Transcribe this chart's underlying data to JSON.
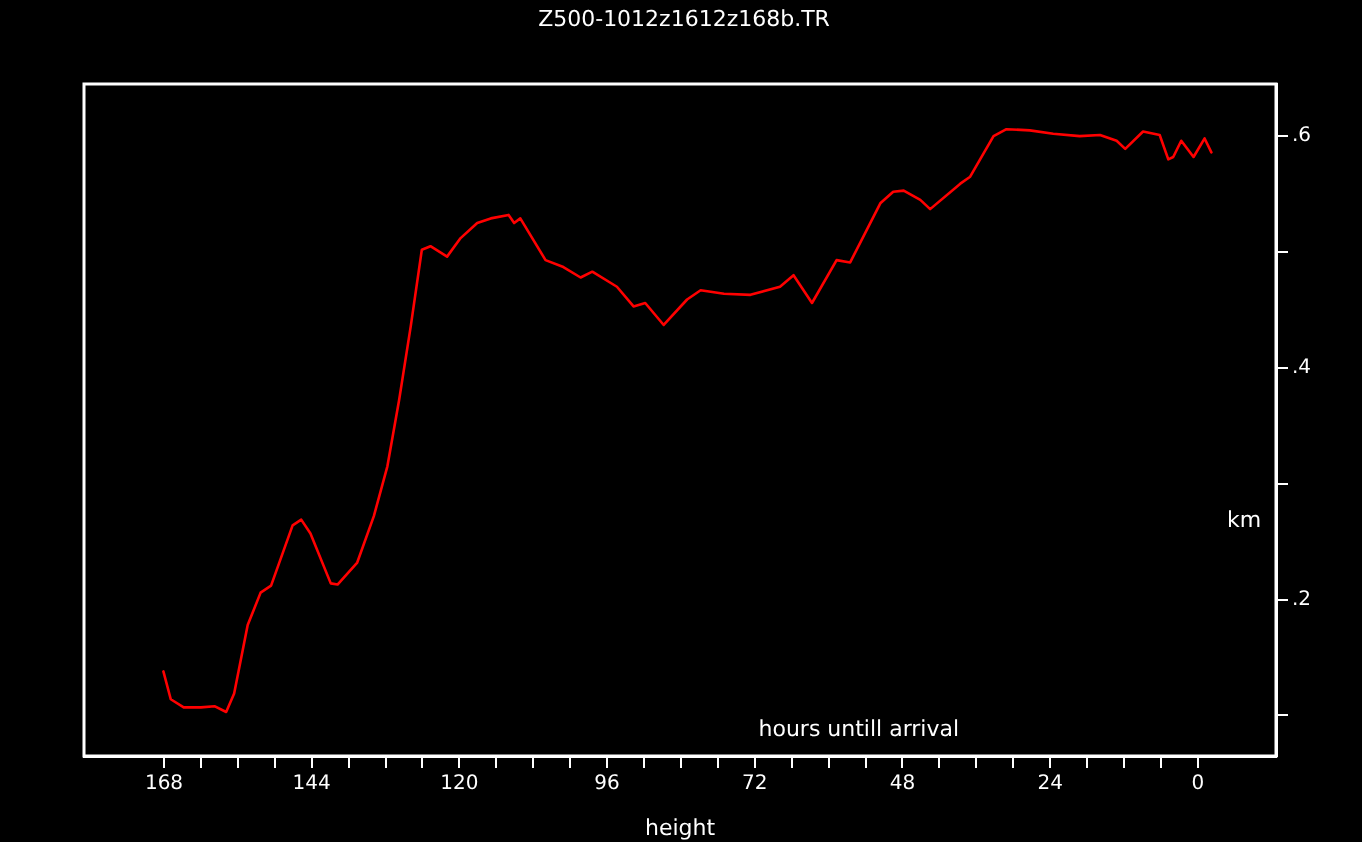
{
  "chart_data": {
    "type": "line",
    "title": "Z500-1012z1612z168b.TR",
    "xlabel": "height",
    "ylabel": "km",
    "annotations": [
      "hours untill arrival"
    ],
    "x": [
      168.1,
      166.9,
      164.8,
      162.0,
      159.8,
      157.9,
      156.6,
      154.4,
      152.3,
      150.6,
      147.1,
      145.7,
      144.2,
      140.9,
      139.8,
      136.6,
      133.9,
      131.7,
      129.8,
      127.9,
      126.1,
      124.7,
      122.0,
      119.8,
      117.1,
      114.9,
      112.0,
      111.1,
      110.1,
      106.0,
      103.1,
      100.3,
      98.4,
      94.4,
      91.7,
      89.8,
      86.8,
      83.0,
      80.8,
      77.0,
      72.7,
      67.9,
      65.7,
      62.7,
      58.7,
      56.5,
      51.6,
      49.5,
      47.8,
      45.1,
      43.5,
      38.6,
      37.0,
      33.2,
      31.1,
      27.3,
      23.5,
      19.2,
      15.9,
      13.2,
      11.8,
      8.9,
      6.2,
      4.8,
      4.0,
      2.7,
      0.7,
      -1.1,
      -2.2
    ],
    "series": [
      {
        "color": "#ff0000",
        "values": [
          0.138,
          0.114,
          0.107,
          0.107,
          0.108,
          0.103,
          0.119,
          0.178,
          0.206,
          0.212,
          0.264,
          0.269,
          0.257,
          0.214,
          0.213,
          0.232,
          0.272,
          0.315,
          0.372,
          0.436,
          0.502,
          0.505,
          0.496,
          0.512,
          0.525,
          0.529,
          0.532,
          0.525,
          0.529,
          0.493,
          0.487,
          0.478,
          0.483,
          0.47,
          0.453,
          0.456,
          0.437,
          0.459,
          0.467,
          0.464,
          0.463,
          0.47,
          0.48,
          0.456,
          0.493,
          0.491,
          0.542,
          0.552,
          0.553,
          0.545,
          0.537,
          0.559,
          0.565,
          0.6,
          0.606,
          0.605,
          0.602,
          0.6,
          0.601,
          0.596,
          0.589,
          0.604,
          0.601,
          0.58,
          0.582,
          0.596,
          0.582,
          0.598,
          0.586
        ]
      }
    ],
    "xlim": [
      181,
      -12.7
    ],
    "ylim": [
      0.065,
      0.645
    ],
    "xticks": [
      168,
      {
        "value": 162,
        "label": null
      },
      {
        "value": 156,
        "label": null
      },
      {
        "value": 150,
        "label": null
      },
      144,
      {
        "value": 138,
        "label": null
      },
      {
        "value": 132,
        "label": null
      },
      {
        "value": 126,
        "label": null
      },
      120,
      {
        "value": 114,
        "label": null
      },
      {
        "value": 108,
        "label": null
      },
      {
        "value": 102,
        "label": null
      },
      96,
      {
        "value": 90,
        "label": null
      },
      {
        "value": 84,
        "label": null
      },
      {
        "value": 78,
        "label": null
      },
      72,
      {
        "value": 66,
        "label": null
      },
      {
        "value": 60,
        "label": null
      },
      {
        "value": 54,
        "label": null
      },
      48,
      {
        "value": 42,
        "label": null
      },
      {
        "value": 36,
        "label": null
      },
      {
        "value": 30,
        "label": null
      },
      24,
      {
        "value": 18,
        "label": null
      },
      {
        "value": 12,
        "label": null
      },
      {
        "value": 6,
        "label": null
      },
      0
    ],
    "yticks": [
      {
        "value": 0.1,
        "label": null
      },
      {
        "value": 0.2,
        "label": ".2"
      },
      {
        "value": 0.3,
        "label": null
      },
      {
        "value": 0.4,
        "label": ".4"
      },
      {
        "value": 0.5,
        "label": null
      },
      {
        "value": 0.6,
        "label": ".6"
      }
    ],
    "grid": false,
    "legend": false,
    "marker": "none",
    "line_style": "solid"
  }
}
